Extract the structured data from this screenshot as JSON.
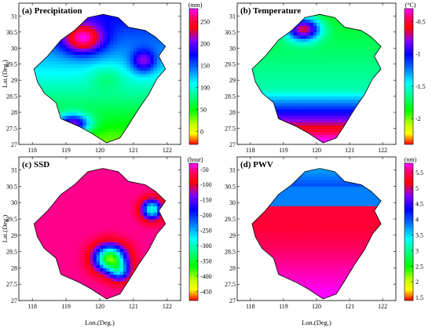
{
  "chart_data": [
    {
      "type": "heatmap",
      "title": "(a) Precipitation",
      "unit": "(mm)",
      "ylabel": "Lat.(Deg.)",
      "xlabel": "",
      "x_ticks": [
        "118",
        "119",
        "120",
        "121",
        "122"
      ],
      "y_ticks": [
        "27",
        "27.5",
        "28",
        "28.5",
        "29",
        "29.5",
        "30",
        "30.5",
        "31"
      ],
      "colorbar_ticks": [
        "250",
        "200",
        "150",
        "100",
        "50",
        "0"
      ],
      "colorbar_range": [
        -30,
        280
      ],
      "colormap": "jet_reversed_with_magenta",
      "field": "precip"
    },
    {
      "type": "heatmap",
      "title": "(b) Temperature",
      "unit": "(°C)",
      "ylabel": "",
      "xlabel": "",
      "x_ticks": [
        "118",
        "119",
        "120",
        "121",
        "122"
      ],
      "y_ticks": [
        "27",
        "27.5",
        "28",
        "28.5",
        "29",
        "29.5",
        "30",
        "30.5",
        "31"
      ],
      "colorbar_ticks": [
        "-0.5",
        "-1",
        "-1.5",
        "-2"
      ],
      "colorbar_range": [
        -2.4,
        -0.3
      ],
      "colormap": "jet_reversed_with_magenta",
      "field": "temp"
    },
    {
      "type": "heatmap",
      "title": "(c) SSD",
      "unit": "(hour)",
      "ylabel": "Lat.(Deg.)",
      "xlabel": "Lon.(Deg.)",
      "x_ticks": [
        "118",
        "119",
        "120",
        "121",
        "122"
      ],
      "y_ticks": [
        "27",
        "27.5",
        "28",
        "28.5",
        "29",
        "29.5",
        "30",
        "30.5",
        "31"
      ],
      "colorbar_ticks": [
        "-50",
        "-100",
        "-150",
        "-200",
        "-250",
        "-300",
        "-350",
        "-400",
        "-450"
      ],
      "colorbar_range": [
        -480,
        -30
      ],
      "colormap": "jet_reversed_with_magenta",
      "field": "ssd"
    },
    {
      "type": "heatmap",
      "title": "(d) PWV",
      "unit": "(nm)",
      "ylabel": "",
      "xlabel": "Lon.(Deg.)",
      "x_ticks": [
        "118",
        "119",
        "120",
        "121",
        "122"
      ],
      "y_ticks": [
        "27",
        "27.5",
        "28",
        "28.5",
        "29",
        "29.5",
        "30",
        "30.5",
        "31"
      ],
      "colorbar_ticks": [
        "5.5",
        "5",
        "4.5",
        "4",
        "3.5",
        "3",
        "2.5",
        "2",
        "1.5"
      ],
      "colorbar_range": [
        1.4,
        5.8
      ],
      "colormap": "jet_reversed_with_magenta",
      "field": "pwv"
    }
  ]
}
